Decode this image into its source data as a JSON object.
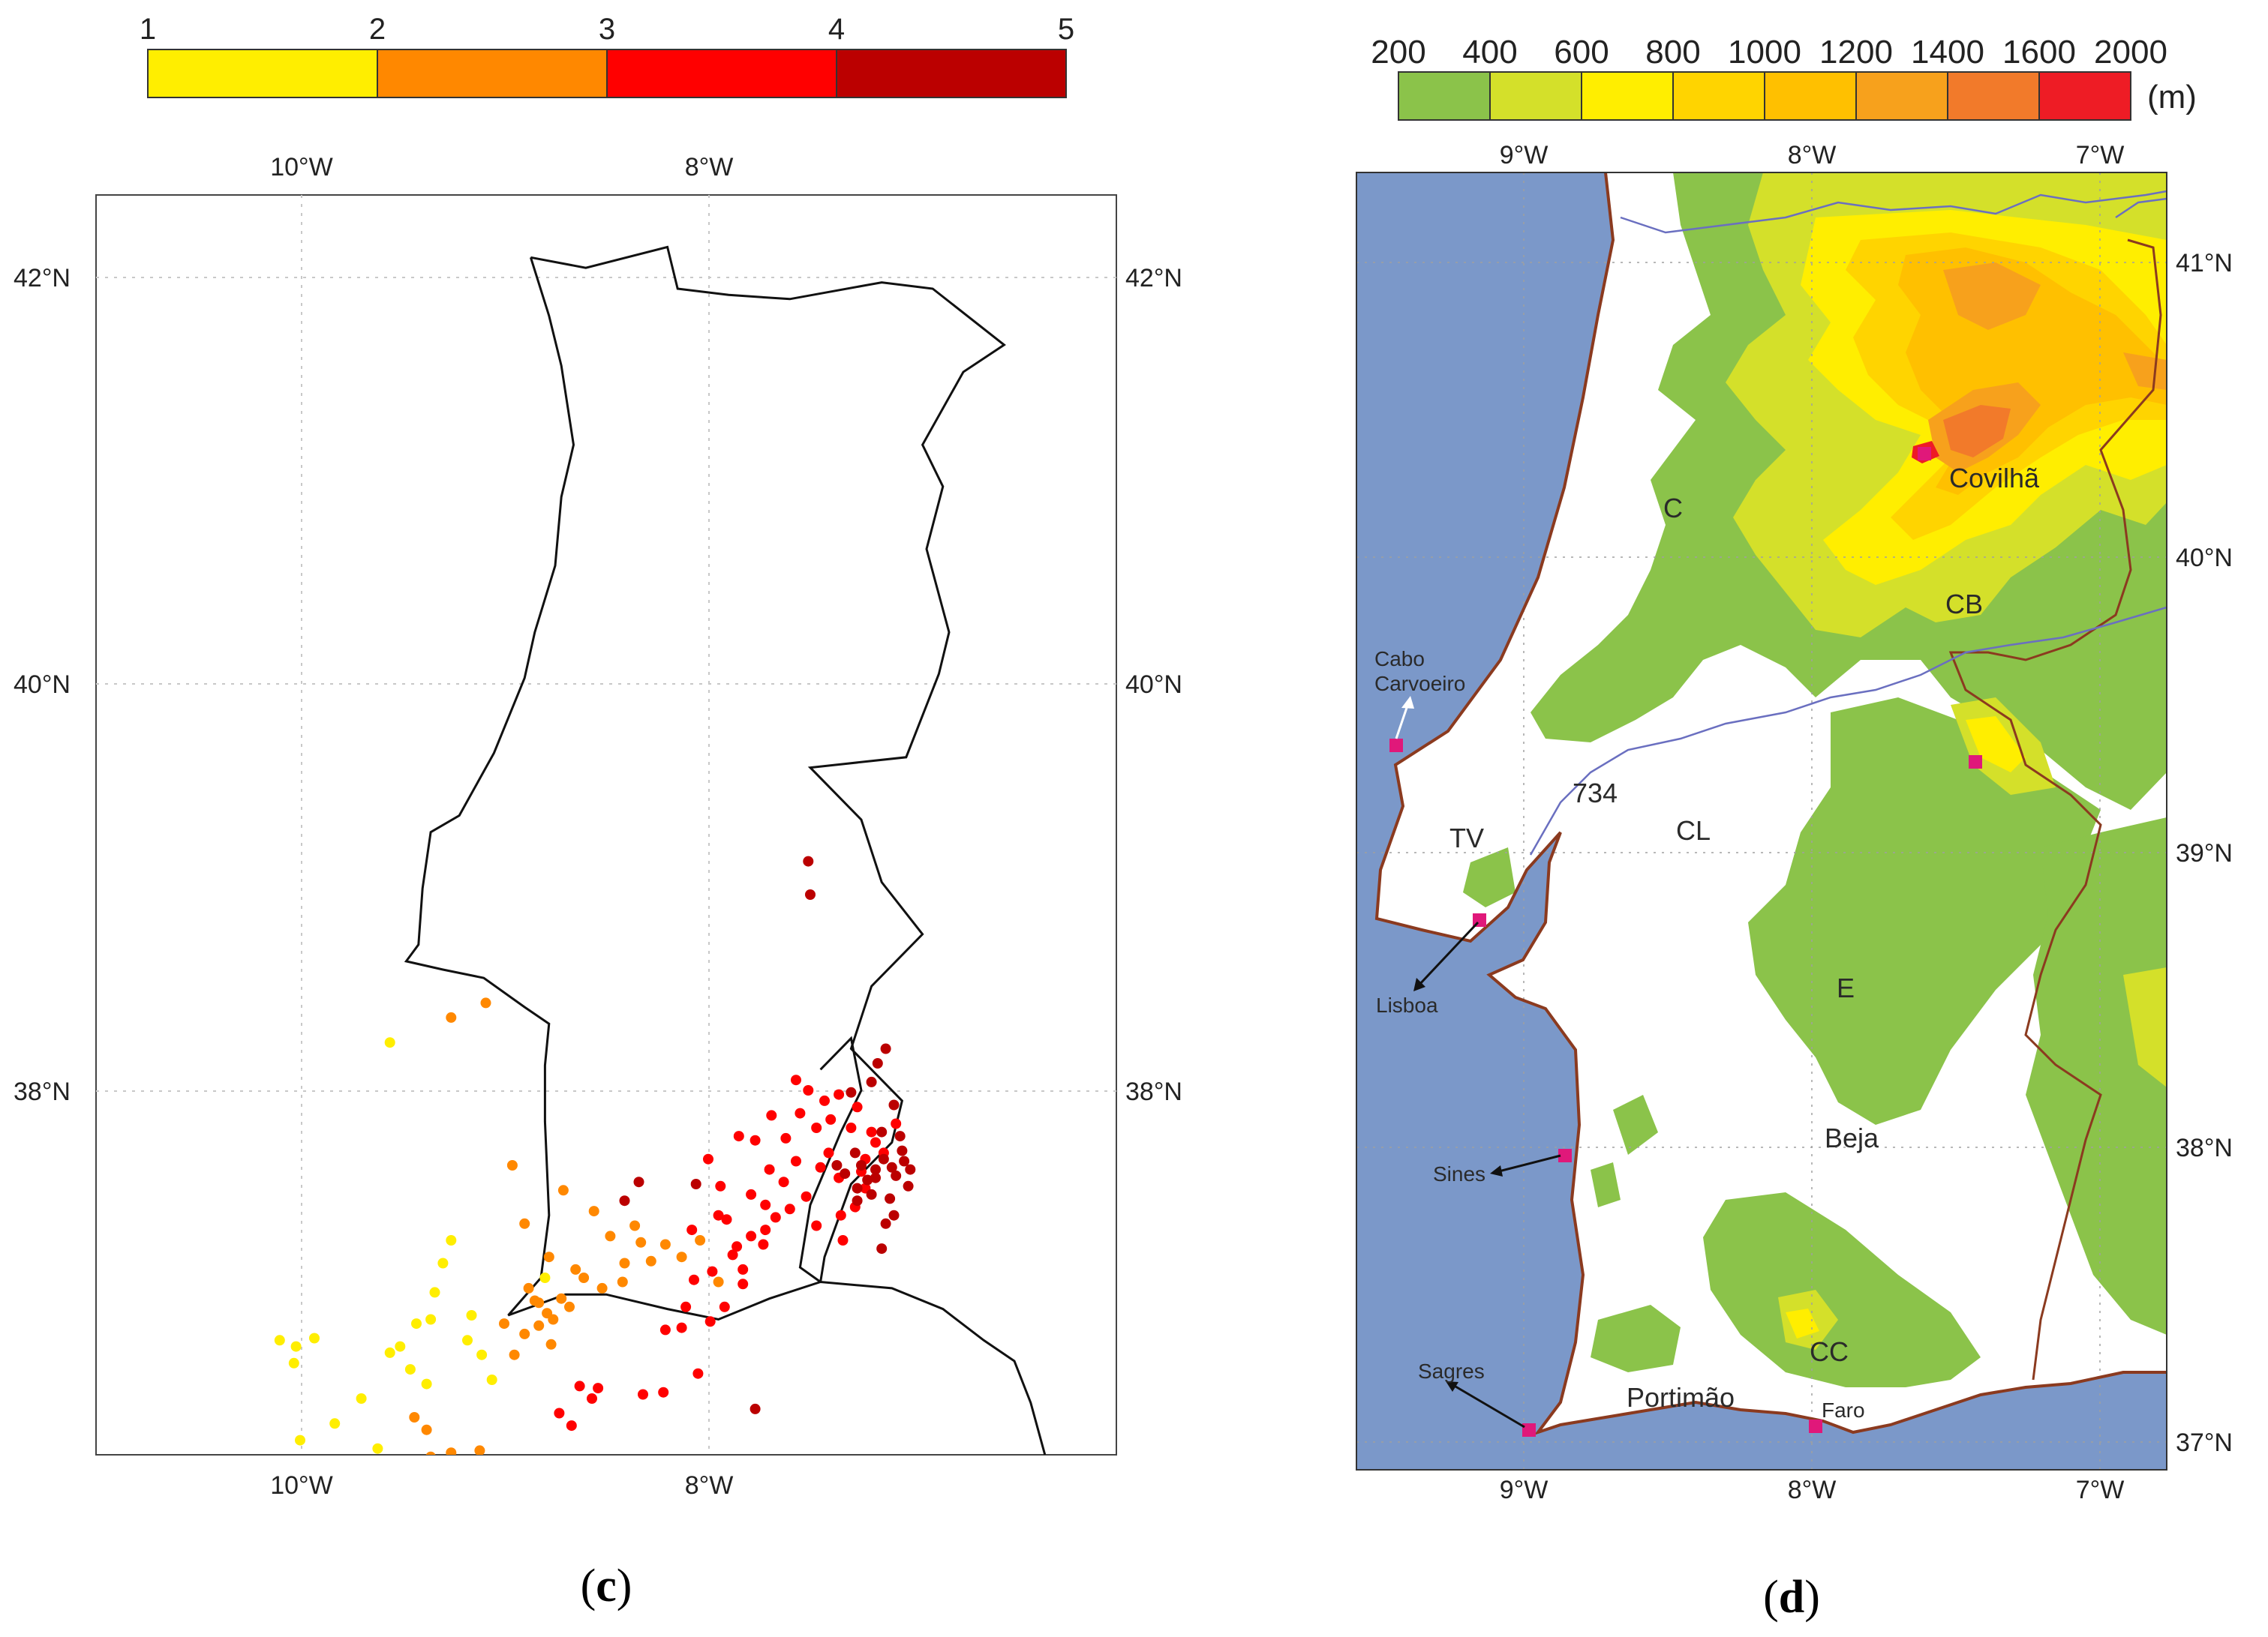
{
  "panel_c": {
    "caption_open": "(",
    "caption_letter": "c",
    "caption_close": ")",
    "colorbar": {
      "ticks": [
        "1",
        "2",
        "3",
        "4",
        "5"
      ],
      "colors": [
        "#ffee00",
        "#ff8800",
        "#ff0000",
        "#bb0000"
      ]
    },
    "axes": {
      "top_ticks": [
        "10°W",
        "8°W"
      ],
      "bottom_ticks": [
        "10°W",
        "8°W"
      ],
      "left_ticks": [
        "42°N",
        "40°N",
        "38°N"
      ],
      "right_ticks": [
        "42°N",
        "40°N",
        "38°N"
      ],
      "lon_range": [
        -11.0,
        -6.0
      ],
      "lat_range": [
        36.35,
        42.4
      ],
      "grid": true
    },
    "points_by_class": {
      "1": [
        [
          -10.1,
          36.9
        ],
        [
          -10.02,
          36.87
        ],
        [
          -9.93,
          36.91
        ],
        [
          -9.7,
          36.62
        ],
        [
          -9.83,
          36.5
        ],
        [
          -9.62,
          36.38
        ],
        [
          -9.56,
          36.84
        ],
        [
          -9.51,
          36.87
        ],
        [
          -9.43,
          36.98
        ],
        [
          -9.36,
          37.0
        ],
        [
          -9.34,
          37.13
        ],
        [
          -9.3,
          37.27
        ],
        [
          -9.26,
          37.38
        ],
        [
          -9.16,
          37.02
        ],
        [
          -9.11,
          36.83
        ],
        [
          -9.18,
          36.9
        ],
        [
          -9.06,
          36.71
        ],
        [
          -9.46,
          36.76
        ],
        [
          -9.38,
          36.69
        ],
        [
          -10.0,
          36.42
        ],
        [
          -10.03,
          36.79
        ],
        [
          -9.56,
          38.33
        ],
        [
          -8.8,
          37.2
        ]
      ],
      "2": [
        [
          -9.26,
          38.45
        ],
        [
          -9.09,
          38.52
        ],
        [
          -8.96,
          37.74
        ],
        [
          -8.9,
          37.46
        ],
        [
          -8.78,
          37.3
        ],
        [
          -8.72,
          37.1
        ],
        [
          -8.71,
          37.62
        ],
        [
          -8.76,
          37.0
        ],
        [
          -8.83,
          36.97
        ],
        [
          -8.85,
          37.09
        ],
        [
          -8.79,
          37.03
        ],
        [
          -8.65,
          37.24
        ],
        [
          -8.56,
          37.52
        ],
        [
          -8.48,
          37.4
        ],
        [
          -8.42,
          37.18
        ],
        [
          -8.33,
          37.37
        ],
        [
          -8.28,
          37.28
        ],
        [
          -8.21,
          37.36
        ],
        [
          -8.13,
          37.3
        ],
        [
          -9.0,
          36.98
        ],
        [
          -8.9,
          36.93
        ],
        [
          -8.77,
          36.88
        ],
        [
          -8.68,
          37.06
        ],
        [
          -8.61,
          37.2
        ],
        [
          -8.52,
          37.15
        ],
        [
          -8.95,
          36.83
        ],
        [
          -9.44,
          36.53
        ],
        [
          -9.36,
          36.34
        ],
        [
          -9.26,
          36.36
        ],
        [
          -9.12,
          36.37
        ],
        [
          -9.5,
          36.21
        ],
        [
          -9.56,
          36.22
        ],
        [
          -8.83,
          37.08
        ],
        [
          -8.36,
          37.45
        ],
        [
          -8.41,
          37.27
        ],
        [
          -8.04,
          37.38
        ],
        [
          -7.95,
          37.18
        ],
        [
          -9.38,
          36.47
        ],
        [
          -8.88,
          37.15
        ]
      ],
      "3": [
        [
          -8.73,
          36.55
        ],
        [
          -8.67,
          36.49
        ],
        [
          -8.63,
          36.68
        ],
        [
          -8.57,
          36.62
        ],
        [
          -8.54,
          36.67
        ],
        [
          -8.32,
          36.64
        ],
        [
          -8.22,
          36.65
        ],
        [
          -8.05,
          36.74
        ],
        [
          -8.21,
          36.95
        ],
        [
          -8.11,
          37.06
        ],
        [
          -8.07,
          37.19
        ],
        [
          -7.98,
          37.23
        ],
        [
          -8.08,
          37.43
        ],
        [
          -7.91,
          37.48
        ],
        [
          -7.86,
          37.35
        ],
        [
          -7.83,
          37.24
        ],
        [
          -7.79,
          37.4
        ],
        [
          -7.72,
          37.55
        ],
        [
          -7.67,
          37.49
        ],
        [
          -7.63,
          37.66
        ],
        [
          -7.57,
          37.76
        ],
        [
          -7.52,
          37.59
        ],
        [
          -7.45,
          37.73
        ],
        [
          -7.41,
          37.8
        ],
        [
          -7.36,
          37.68
        ],
        [
          -7.28,
          37.54
        ],
        [
          -7.23,
          37.63
        ],
        [
          -7.14,
          37.8
        ],
        [
          -7.2,
          37.9
        ],
        [
          -7.27,
          38.02
        ],
        [
          -7.36,
          38.08
        ],
        [
          -7.43,
          38.05
        ],
        [
          -7.47,
          37.92
        ],
        [
          -7.51,
          38.1
        ],
        [
          -7.57,
          38.15
        ],
        [
          -7.62,
          37.87
        ],
        [
          -7.7,
          37.72
        ],
        [
          -7.79,
          37.6
        ],
        [
          -7.94,
          37.64
        ],
        [
          -8.0,
          37.77
        ],
        [
          -7.85,
          37.88
        ],
        [
          -7.95,
          37.5
        ],
        [
          -7.88,
          37.31
        ],
        [
          -7.73,
          37.36
        ],
        [
          -7.83,
          37.17
        ],
        [
          -7.92,
          37.06
        ],
        [
          -7.35,
          37.5
        ],
        [
          -7.23,
          37.77
        ],
        [
          -7.18,
          37.85
        ],
        [
          -7.08,
          37.94
        ],
        [
          -7.3,
          37.92
        ],
        [
          -7.4,
          37.96
        ],
        [
          -7.55,
          37.99
        ],
        [
          -7.69,
          37.98
        ],
        [
          -7.77,
          37.86
        ],
        [
          -8.13,
          36.96
        ],
        [
          -7.99,
          36.99
        ],
        [
          -7.72,
          37.43
        ],
        [
          -7.6,
          37.53
        ],
        [
          -7.47,
          37.45
        ],
        [
          -7.34,
          37.38
        ],
        [
          -7.25,
          37.71
        ]
      ],
      "4": [
        [
          -7.51,
          39.2
        ],
        [
          -7.5,
          39.04
        ],
        [
          -7.17,
          38.23
        ],
        [
          -7.2,
          38.14
        ],
        [
          -7.09,
          38.03
        ],
        [
          -7.15,
          37.9
        ],
        [
          -7.06,
          37.88
        ],
        [
          -7.14,
          37.77
        ],
        [
          -7.05,
          37.81
        ],
        [
          -7.01,
          37.72
        ],
        [
          -7.18,
          37.68
        ],
        [
          -7.27,
          37.63
        ],
        [
          -7.33,
          37.7
        ],
        [
          -7.37,
          37.74
        ],
        [
          -7.25,
          37.74
        ],
        [
          -7.08,
          37.69
        ],
        [
          -7.02,
          37.64
        ],
        [
          -7.11,
          37.58
        ],
        [
          -7.2,
          37.6
        ],
        [
          -7.13,
          37.46
        ],
        [
          -7.09,
          37.5
        ],
        [
          -7.27,
          37.57
        ],
        [
          -7.15,
          37.34
        ],
        [
          -7.28,
          37.8
        ],
        [
          -7.3,
          38.09
        ],
        [
          -7.13,
          38.3
        ],
        [
          -7.18,
          37.72
        ],
        [
          -7.22,
          37.67
        ],
        [
          -7.1,
          37.73
        ],
        [
          -7.04,
          37.76
        ],
        [
          -7.77,
          36.57
        ],
        [
          -8.34,
          37.66
        ],
        [
          -8.41,
          37.57
        ],
        [
          -8.06,
          37.65
        ]
      ]
    },
    "coastline_coords": [
      [
        -8.87,
        42.1
      ],
      [
        -8.78,
        41.82
      ],
      [
        -8.72,
        41.58
      ],
      [
        -8.66,
        41.2
      ],
      [
        -8.72,
        40.95
      ],
      [
        -8.75,
        40.62
      ],
      [
        -8.85,
        40.3
      ],
      [
        -8.9,
        40.08
      ],
      [
        -9.05,
        39.72
      ],
      [
        -9.22,
        39.42
      ],
      [
        -9.36,
        39.34
      ],
      [
        -9.4,
        39.07
      ],
      [
        -9.42,
        38.8
      ],
      [
        -9.48,
        38.72
      ],
      [
        -9.3,
        38.68
      ],
      [
        -9.1,
        38.64
      ],
      [
        -8.9,
        38.5
      ],
      [
        -8.78,
        38.42
      ],
      [
        -8.8,
        38.22
      ],
      [
        -8.8,
        37.95
      ],
      [
        -8.78,
        37.5
      ],
      [
        -8.82,
        37.2
      ],
      [
        -8.98,
        37.02
      ],
      [
        -8.7,
        37.12
      ],
      [
        -8.5,
        37.12
      ],
      [
        -8.2,
        37.05
      ],
      [
        -7.95,
        37.0
      ],
      [
        -7.7,
        37.1
      ],
      [
        -7.45,
        37.18
      ],
      [
        -7.1,
        37.15
      ],
      [
        -6.85,
        37.05
      ],
      [
        -6.65,
        36.9
      ],
      [
        -6.5,
        36.8
      ],
      [
        -6.42,
        36.6
      ],
      [
        -6.35,
        36.35
      ]
    ],
    "border_coords": [
      [
        -8.87,
        42.1
      ],
      [
        -8.6,
        42.05
      ],
      [
        -8.2,
        42.15
      ],
      [
        -8.15,
        41.95
      ],
      [
        -7.9,
        41.92
      ],
      [
        -7.6,
        41.9
      ],
      [
        -7.15,
        41.98
      ],
      [
        -6.9,
        41.95
      ],
      [
        -6.55,
        41.68
      ],
      [
        -6.75,
        41.55
      ],
      [
        -6.95,
        41.2
      ],
      [
        -6.85,
        41.0
      ],
      [
        -6.93,
        40.7
      ],
      [
        -6.82,
        40.3
      ],
      [
        -6.87,
        40.1
      ],
      [
        -7.03,
        39.7
      ],
      [
        -7.5,
        39.65
      ],
      [
        -7.25,
        39.4
      ],
      [
        -7.15,
        39.1
      ],
      [
        -6.95,
        38.85
      ],
      [
        -7.2,
        38.6
      ],
      [
        -7.3,
        38.3
      ],
      [
        -7.05,
        38.05
      ],
      [
        -7.1,
        37.85
      ],
      [
        -7.3,
        37.65
      ],
      [
        -7.43,
        37.3
      ],
      [
        -7.45,
        37.18
      ]
    ],
    "interior_coords": [
      [
        -7.45,
        38.2
      ],
      [
        -7.3,
        38.35
      ],
      [
        -7.25,
        38.1
      ],
      [
        -7.35,
        37.9
      ],
      [
        -7.5,
        37.55
      ],
      [
        -7.55,
        37.25
      ],
      [
        -7.45,
        37.18
      ]
    ]
  },
  "panel_d": {
    "caption_open": "(",
    "caption_letter": "d",
    "caption_close": ")",
    "colorbar": {
      "ticks": [
        "200",
        "400",
        "600",
        "800",
        "1000",
        "1200",
        "1400",
        "1600",
        "2000"
      ],
      "unit": "(m)",
      "colors": [
        "#8bc34a",
        "#d4e02a",
        "#ffee00",
        "#ffd400",
        "#ffc000",
        "#f7a11c",
        "#f27a2a",
        "#ee1c25"
      ]
    },
    "axes": {
      "top_ticks": [
        "9°W",
        "8°W",
        "7°W"
      ],
      "bottom_ticks": [
        "9°W",
        "8°W",
        "7°W"
      ],
      "right_ticks": [
        "41°N",
        "40°N",
        "39°N",
        "38°N",
        "37°N"
      ],
      "lon_range": [
        -9.6,
        -6.8
      ],
      "lat_range": [
        36.9,
        41.3
      ],
      "grid": true
    },
    "colors": {
      "sea": "#7b98c9",
      "coast": "#8b3a1f",
      "border": "#8b3a1f",
      "river": "#6a6fc0",
      "station": "#e0187a"
    },
    "places": {
      "covilha": "Covilhã",
      "c": "C",
      "cb": "CB",
      "cabo_carvoeiro": [
        "Cabo",
        "Carvoeiro"
      ],
      "n734": "734",
      "cl": "CL",
      "tv": "TV",
      "lisboa": "Lisboa",
      "e": "E",
      "beja": "Beja",
      "sines": "Sines",
      "cc": "CC",
      "sagres": "Sagres",
      "portimao": "Portimão",
      "faro": "Faro"
    }
  }
}
